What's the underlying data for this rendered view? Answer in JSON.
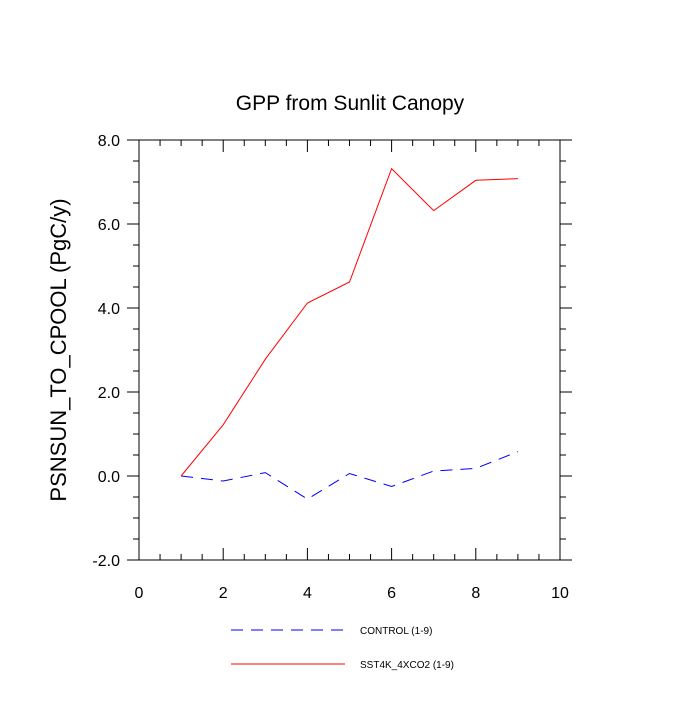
{
  "chart_data": {
    "type": "line",
    "title": "GPP from Sunlit Canopy",
    "xlabel": "",
    "ylabel": "PSNSUN_TO_CPOOL  (PgC/y)",
    "xlim": [
      0,
      10
    ],
    "ylim": [
      -2,
      8
    ],
    "x_ticks": [
      0,
      2,
      4,
      6,
      8,
      10
    ],
    "x_tick_labels": [
      "0",
      "2",
      "4",
      "6",
      "8",
      "10"
    ],
    "y_ticks": [
      -2,
      0,
      2,
      4,
      6,
      8
    ],
    "y_tick_labels": [
      "-2.0",
      "0.0",
      "2.0",
      "4.0",
      "6.0",
      "8.0"
    ],
    "grid": false,
    "legend_position": "bottom",
    "series": [
      {
        "name": "CONTROL (1-9)",
        "color": "#0000ff",
        "style": "dashed",
        "x": [
          1,
          2,
          3,
          4,
          5,
          6,
          7,
          8,
          9
        ],
        "values": [
          0.0,
          -0.12,
          0.08,
          -0.55,
          0.06,
          -0.25,
          0.12,
          0.18,
          0.58
        ]
      },
      {
        "name": "SST4K_4XCO2 (1-9)",
        "color": "#ff0000",
        "style": "solid",
        "x": [
          1,
          2,
          3,
          4,
          5,
          6,
          7,
          8,
          9
        ],
        "values": [
          0.0,
          1.22,
          2.78,
          4.12,
          4.62,
          7.32,
          6.32,
          7.04,
          7.08
        ]
      }
    ]
  }
}
